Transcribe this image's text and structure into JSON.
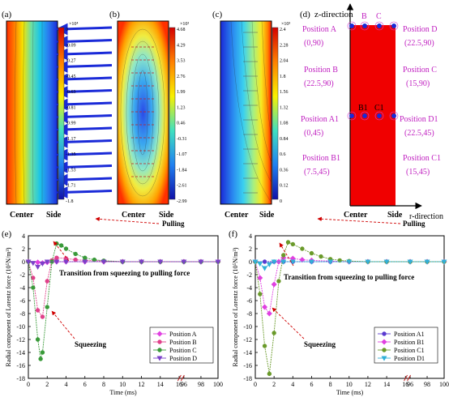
{
  "panels": {
    "a": {
      "label": "(a)",
      "colorbar_exp": "×10⁴",
      "colorbar_ticks": [
        "0",
        "-0.09",
        "-0.27",
        "-0.45",
        "-0.63",
        "-0.81",
        "-0.99",
        "-1.17",
        "-1.35",
        "-1.53",
        "-1.71",
        "-1.8"
      ],
      "x_labels": [
        "Center",
        "Side"
      ]
    },
    "b": {
      "label": "(b)",
      "colorbar_exp": "×10³",
      "colorbar_ticks": [
        "4.68",
        "4.29",
        "3.53",
        "2.76",
        "1.99",
        "1.23",
        "0.46",
        "-0.31",
        "-1.07",
        "-1.84",
        "-2.61",
        "-2.99"
      ],
      "x_labels": [
        "Center",
        "Side"
      ]
    },
    "c": {
      "label": "(c)",
      "colorbar_exp": "×10³",
      "colorbar_ticks": [
        "2.4",
        "2.28",
        "2.04",
        "1.8",
        "1.56",
        "1.32",
        "1.08",
        "0.84",
        "0.6",
        "0.36",
        "0.12",
        "0"
      ],
      "x_labels": [
        "Center",
        "Side"
      ]
    },
    "d": {
      "label": "(d)",
      "z_axis": "z-direction",
      "r_axis": "r-direction",
      "top_points": [
        "B",
        "C"
      ],
      "mid_points": [
        "B1",
        "C1"
      ],
      "left_positions": [
        {
          "name": "Position A",
          "coord": "(0,90)"
        },
        {
          "name": "Position B",
          "coord": "(22.5,90)"
        },
        {
          "name": "Position A1",
          "coord": "(0,45)"
        },
        {
          "name": "Position B1",
          "coord": "(7.5,45)"
        }
      ],
      "right_positions": [
        {
          "name": "Position D",
          "coord": "(22.5,90)"
        },
        {
          "name": "Position C",
          "coord": "(15,90)"
        },
        {
          "name": "Position D1",
          "coord": "(22.5,45)"
        },
        {
          "name": "Position C1",
          "coord": "(15,45)"
        }
      ],
      "x_labels": [
        "Center",
        "Side"
      ]
    }
  },
  "chart_data": [
    {
      "type": "line",
      "panel": "(e)",
      "xlabel": "Time (ms)",
      "ylabel": "Radial component of Lorentz force (10⁵N/m³)",
      "ylim": [
        -18,
        4
      ],
      "yticks": [
        "4",
        "2",
        "0",
        "-2",
        "-4",
        "-6",
        "-8",
        "-10",
        "-12",
        "-14",
        "-16",
        "-18"
      ],
      "xticks": [
        "0",
        "2",
        "4",
        "6",
        "8",
        "10",
        "12",
        "14",
        "16",
        "96",
        "98",
        "100"
      ],
      "annotations": [
        "Pulling",
        "Transition from squeezing to pulling force",
        "Squeezing"
      ],
      "series": [
        {
          "name": "Position A",
          "color": "#e040e0",
          "marker": "diamond",
          "points": [
            [
              0,
              0
            ],
            [
              1,
              -0.1
            ],
            [
              1.5,
              -0.2
            ],
            [
              2,
              -0.1
            ],
            [
              3,
              0
            ],
            [
              4,
              0
            ],
            [
              6,
              0
            ],
            [
              8,
              0
            ],
            [
              10,
              0
            ],
            [
              12,
              0
            ],
            [
              14,
              0
            ],
            [
              96,
              0
            ],
            [
              98,
              0
            ],
            [
              100,
              0
            ]
          ]
        },
        {
          "name": "Position B",
          "color": "#e0408a",
          "marker": "circle",
          "points": [
            [
              0,
              0
            ],
            [
              0.5,
              -2.5
            ],
            [
              1,
              -7.5
            ],
            [
              1.5,
              -8.5
            ],
            [
              2,
              -3
            ],
            [
              2.5,
              0.2
            ],
            [
              3,
              0.6
            ],
            [
              4,
              0.5
            ],
            [
              5,
              0.3
            ],
            [
              6,
              0.2
            ],
            [
              8,
              0.1
            ],
            [
              10,
              0
            ],
            [
              12,
              0
            ],
            [
              14,
              0
            ],
            [
              96,
              0
            ],
            [
              98,
              0
            ],
            [
              100,
              0
            ]
          ]
        },
        {
          "name": "Position C",
          "color": "#3a9a3a",
          "marker": "circle",
          "points": [
            [
              0,
              0
            ],
            [
              0.5,
              -4
            ],
            [
              1,
              -12
            ],
            [
              1.3,
              -15
            ],
            [
              1.5,
              -14
            ],
            [
              2,
              -7
            ],
            [
              2.5,
              0
            ],
            [
              3,
              2.8
            ],
            [
              3.5,
              2.5
            ],
            [
              4,
              2
            ],
            [
              5,
              1.2
            ],
            [
              6,
              0.6
            ],
            [
              7,
              0.3
            ],
            [
              8,
              0.15
            ],
            [
              10,
              0
            ],
            [
              12,
              0
            ],
            [
              14,
              0
            ],
            [
              96,
              0
            ],
            [
              98,
              0
            ],
            [
              100,
              0
            ]
          ]
        },
        {
          "name": "Position D",
          "color": "#7a40c8",
          "marker": "triangle-down",
          "points": [
            [
              0,
              0
            ],
            [
              0.5,
              -0.2
            ],
            [
              1,
              -0.8
            ],
            [
              1.5,
              -0.3
            ],
            [
              2,
              0
            ],
            [
              3,
              0
            ],
            [
              4,
              0
            ],
            [
              6,
              0
            ],
            [
              8,
              0
            ],
            [
              10,
              0
            ],
            [
              12,
              0
            ],
            [
              14,
              0
            ],
            [
              96,
              0
            ],
            [
              98,
              0
            ],
            [
              100,
              0
            ]
          ]
        }
      ]
    },
    {
      "type": "line",
      "panel": "(f)",
      "xlabel": "Time (ms)",
      "ylabel": "Radial component of Lorentz force (10⁵N/m³)",
      "ylim": [
        -18,
        4
      ],
      "yticks": [
        "4",
        "2",
        "0",
        "-2",
        "-4",
        "-6",
        "-8",
        "-10",
        "-12",
        "-14",
        "-16",
        "-18"
      ],
      "xticks": [
        "0",
        "2",
        "4",
        "6",
        "8",
        "10",
        "12",
        "14",
        "16",
        "96",
        "98",
        "100"
      ],
      "annotations": [
        "Pulling",
        "Transition from squeezing to pulling force",
        "Squeezing"
      ],
      "series": [
        {
          "name": "Position A1",
          "color": "#5a3ad0",
          "marker": "circle",
          "points": [
            [
              0,
              0
            ],
            [
              1,
              0
            ],
            [
              2,
              0
            ],
            [
              3,
              0
            ],
            [
              4,
              0
            ],
            [
              6,
              0
            ],
            [
              8,
              0
            ],
            [
              10,
              0
            ],
            [
              12,
              0
            ],
            [
              14,
              0
            ],
            [
              96,
              0
            ],
            [
              98,
              0
            ],
            [
              100,
              0
            ]
          ]
        },
        {
          "name": "Position B1",
          "color": "#e040e0",
          "marker": "diamond",
          "points": [
            [
              0,
              0
            ],
            [
              0.5,
              -2.5
            ],
            [
              1,
              -7
            ],
            [
              1.5,
              -8
            ],
            [
              2,
              -3.5
            ],
            [
              2.5,
              0
            ],
            [
              3,
              0.6
            ],
            [
              4,
              0.5
            ],
            [
              5,
              0.3
            ],
            [
              6,
              0.2
            ],
            [
              8,
              0.1
            ],
            [
              10,
              0
            ],
            [
              12,
              0
            ],
            [
              14,
              0
            ],
            [
              96,
              0
            ],
            [
              98,
              0
            ],
            [
              100,
              0
            ]
          ]
        },
        {
          "name": "Position C1",
          "color": "#6a9a2a",
          "marker": "circle",
          "points": [
            [
              0,
              0
            ],
            [
              0.5,
              -5
            ],
            [
              1,
              -13
            ],
            [
              1.5,
              -17.3
            ],
            [
              2,
              -11
            ],
            [
              2.5,
              -3
            ],
            [
              3,
              1
            ],
            [
              3.5,
              3
            ],
            [
              4,
              2.7
            ],
            [
              5,
              2
            ],
            [
              6,
              1.3
            ],
            [
              7,
              0.8
            ],
            [
              8,
              0.4
            ],
            [
              9,
              0.2
            ],
            [
              10,
              0.1
            ],
            [
              12,
              0
            ],
            [
              14,
              0
            ],
            [
              96,
              0
            ],
            [
              98,
              0
            ],
            [
              100,
              0
            ]
          ]
        },
        {
          "name": "Position D1",
          "color": "#30b0d8",
          "marker": "triangle-down",
          "points": [
            [
              0,
              0
            ],
            [
              0.5,
              -0.3
            ],
            [
              1,
              -1
            ],
            [
              1.5,
              -0.4
            ],
            [
              2,
              0
            ],
            [
              3,
              0
            ],
            [
              4,
              0
            ],
            [
              6,
              0
            ],
            [
              8,
              0
            ],
            [
              10,
              0
            ],
            [
              12,
              0
            ],
            [
              14,
              0
            ],
            [
              96,
              0
            ],
            [
              98,
              0
            ],
            [
              100,
              0
            ]
          ]
        }
      ]
    }
  ]
}
